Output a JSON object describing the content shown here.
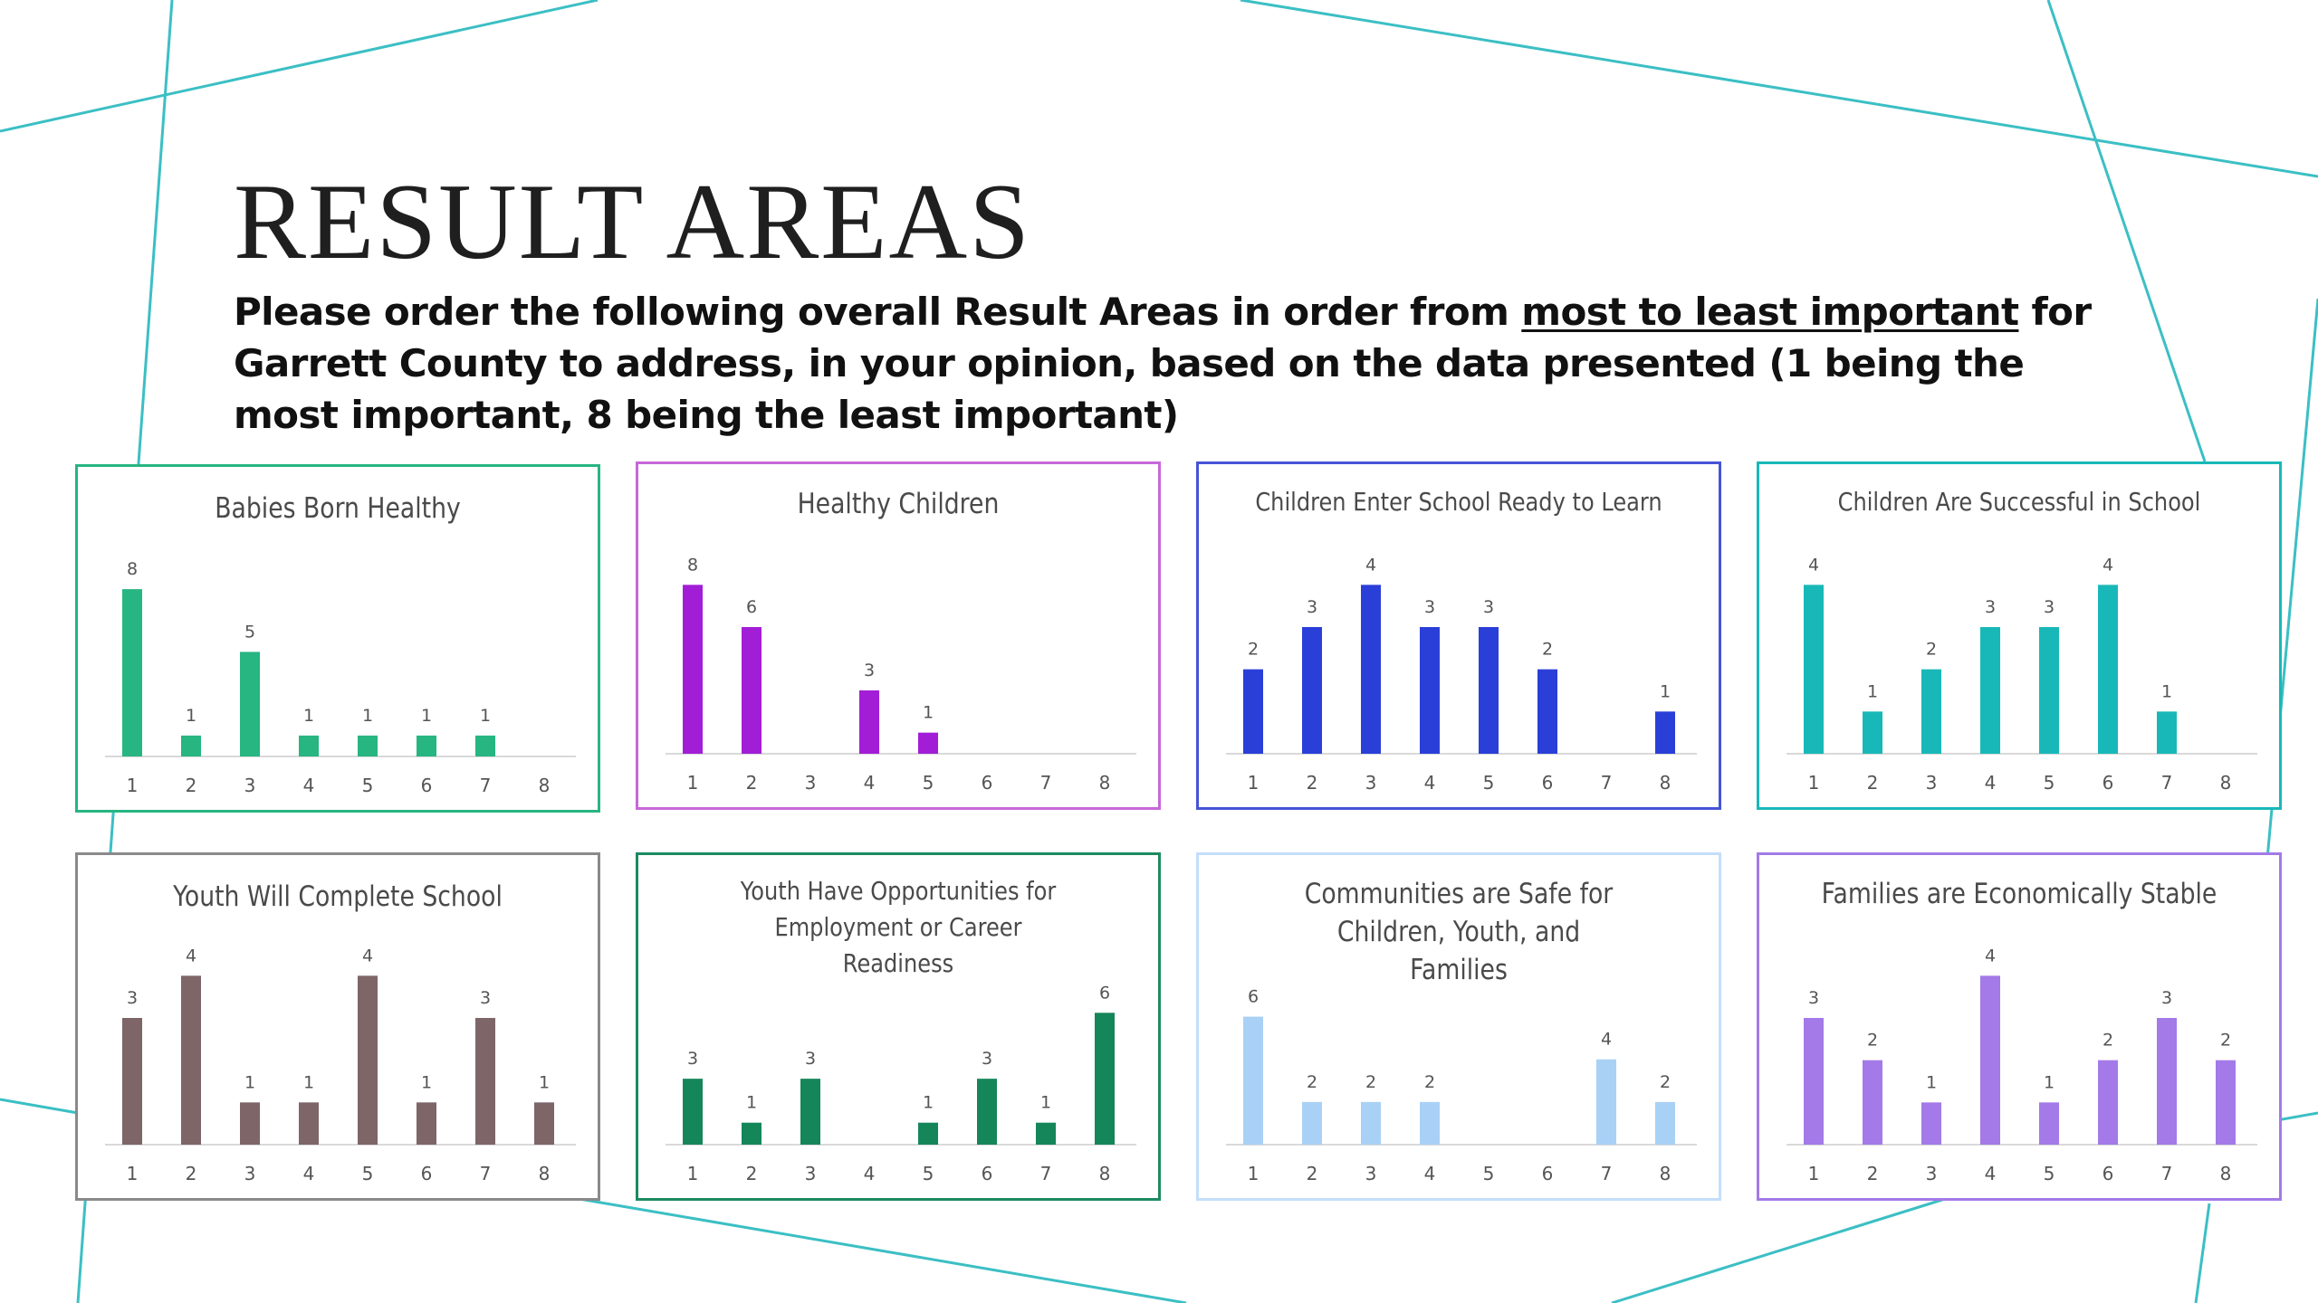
{
  "slide": {
    "title": "RESULT AREAS",
    "question": {
      "before": "Please order the following overall Result Areas in order from ",
      "emphasis": "most to least important",
      "after": " for Garrett County to address, in your opinion, based on the data presented (1 being the most important, 8 being the least important)"
    }
  },
  "colors": {
    "background_lines": "#3bbfc4"
  },
  "chart_data": [
    {
      "type": "bar",
      "title": "Babies Born Healthy",
      "color": "#27b582",
      "border": "#27b582",
      "categories": [
        "1",
        "2",
        "3",
        "4",
        "5",
        "6",
        "7",
        "8"
      ],
      "values": [
        8,
        1,
        5,
        1,
        1,
        1,
        1,
        0
      ],
      "ylim": [
        0,
        9
      ]
    },
    {
      "type": "bar",
      "title": "Healthy Children",
      "color": "#a21ed6",
      "border": "#c767d9",
      "categories": [
        "1",
        "2",
        "3",
        "4",
        "5",
        "6",
        "7",
        "8"
      ],
      "values": [
        8,
        6,
        0,
        3,
        1,
        0,
        0,
        0
      ],
      "ylim": [
        0,
        9
      ]
    },
    {
      "type": "bar",
      "title": "Children Enter School Ready to Learn",
      "color": "#2a3fd8",
      "border": "#4654d6",
      "categories": [
        "1",
        "2",
        "3",
        "4",
        "5",
        "6",
        "7",
        "8"
      ],
      "values": [
        2,
        3,
        4,
        3,
        3,
        2,
        0,
        1
      ],
      "ylim": [
        0,
        4.5
      ]
    },
    {
      "type": "bar",
      "title": "Children Are Successful in School",
      "color": "#19b8b8",
      "border": "#19b8b8",
      "categories": [
        "1",
        "2",
        "3",
        "4",
        "5",
        "6",
        "7",
        "8"
      ],
      "values": [
        4,
        1,
        2,
        3,
        3,
        4,
        1,
        0
      ],
      "ylim": [
        0,
        4.5
      ]
    },
    {
      "type": "bar",
      "title": "Youth Will Complete School",
      "color": "#7d6568",
      "border": "#8a8a8a",
      "categories": [
        "1",
        "2",
        "3",
        "4",
        "5",
        "6",
        "7",
        "8"
      ],
      "values": [
        3,
        4,
        1,
        1,
        4,
        1,
        3,
        1
      ],
      "ylim": [
        0,
        4.5
      ]
    },
    {
      "type": "bar",
      "title": "Youth Have Opportunities for Employment or Career Readiness",
      "color": "#15865a",
      "border": "#1d8a60",
      "categories": [
        "1",
        "2",
        "3",
        "4",
        "5",
        "6",
        "7",
        "8"
      ],
      "values": [
        3,
        1,
        3,
        0,
        1,
        3,
        1,
        6
      ],
      "ylim": [
        0,
        7
      ]
    },
    {
      "type": "bar",
      "title": "Communities are Safe for Children, Youth, and Families",
      "color": "#a9d1f5",
      "border": "#c3defa",
      "categories": [
        "1",
        "2",
        "3",
        "4",
        "5",
        "6",
        "7",
        "8"
      ],
      "values": [
        6,
        2,
        2,
        2,
        0,
        0,
        4,
        2
      ],
      "ylim": [
        0,
        7
      ]
    },
    {
      "type": "bar",
      "title": "Families are Economically Stable",
      "color": "#a37ae8",
      "border": "#a37ae8",
      "categories": [
        "1",
        "2",
        "3",
        "4",
        "5",
        "6",
        "7",
        "8"
      ],
      "values": [
        3,
        2,
        1,
        4,
        1,
        2,
        3,
        2
      ],
      "ylim": [
        0,
        4.5
      ]
    }
  ]
}
